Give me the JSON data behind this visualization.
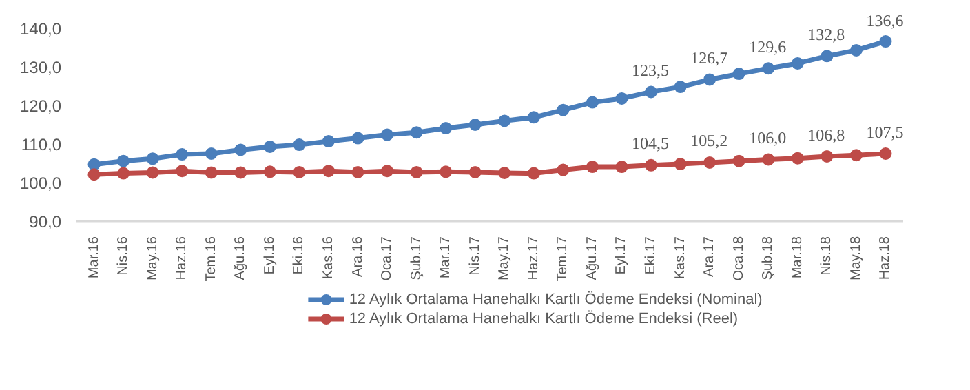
{
  "chart_data": {
    "type": "line",
    "categories": [
      "Mar.16",
      "Nis.16",
      "May.16",
      "Haz.16",
      "Tem.16",
      "Ağu.16",
      "Eyl.16",
      "Eki.16",
      "Kas.16",
      "Ara.16",
      "Oca.17",
      "Şub.17",
      "Mar.17",
      "Nis.17",
      "May.17",
      "Haz.17",
      "Tem.17",
      "Ağu.17",
      "Eyl.17",
      "Eki.17",
      "Kas.17",
      "Ara.17",
      "Oca.18",
      "Şub.18",
      "Mar.18",
      "Nis.18",
      "May.18",
      "Haz.18"
    ],
    "series": [
      {
        "name": "12 Aylık Ortalama Hanehalkı Kartlı Ödeme Endeksi (Nominal)",
        "color": "#4a7ebb",
        "values": [
          104.7,
          105.6,
          106.2,
          107.3,
          107.5,
          108.5,
          109.3,
          109.8,
          110.7,
          111.5,
          112.4,
          113.0,
          114.1,
          115.0,
          116.0,
          116.9,
          118.8,
          120.8,
          121.8,
          123.5,
          124.8,
          126.7,
          128.2,
          129.6,
          130.9,
          132.8,
          134.3,
          136.6
        ],
        "value_labels": [
          null,
          null,
          null,
          null,
          null,
          null,
          null,
          null,
          null,
          null,
          null,
          null,
          null,
          null,
          null,
          null,
          null,
          null,
          null,
          "123,5",
          null,
          "126,7",
          null,
          "129,6",
          null,
          "132,8",
          null,
          "136,6"
        ]
      },
      {
        "name": "12 Aylık Ortalama Hanehalkı Kartlı Ödeme Endeksi (Reel)",
        "color": "#be4b48",
        "values": [
          102.1,
          102.4,
          102.6,
          103.0,
          102.6,
          102.6,
          102.8,
          102.7,
          103.0,
          102.7,
          103.0,
          102.7,
          102.8,
          102.7,
          102.5,
          102.4,
          103.3,
          104.1,
          104.1,
          104.5,
          104.8,
          105.2,
          105.6,
          106.0,
          106.3,
          106.8,
          107.1,
          107.5
        ],
        "value_labels": [
          null,
          null,
          null,
          null,
          null,
          null,
          null,
          null,
          null,
          null,
          null,
          null,
          null,
          null,
          null,
          null,
          null,
          null,
          null,
          "104,5",
          null,
          "105,2",
          null,
          "106,0",
          null,
          "106,8",
          null,
          "107,5"
        ]
      }
    ],
    "ylim": [
      90,
      140
    ],
    "yticks": [
      {
        "value": 90,
        "label": "90,0"
      },
      {
        "value": 100,
        "label": "100,0"
      },
      {
        "value": 110,
        "label": "110,0"
      },
      {
        "value": 120,
        "label": "120,0"
      },
      {
        "value": 130,
        "label": "130,0"
      },
      {
        "value": 140,
        "label": "140,0"
      }
    ],
    "grid": false,
    "legend": "bottom",
    "marker": "circle",
    "line_style": "solid"
  }
}
